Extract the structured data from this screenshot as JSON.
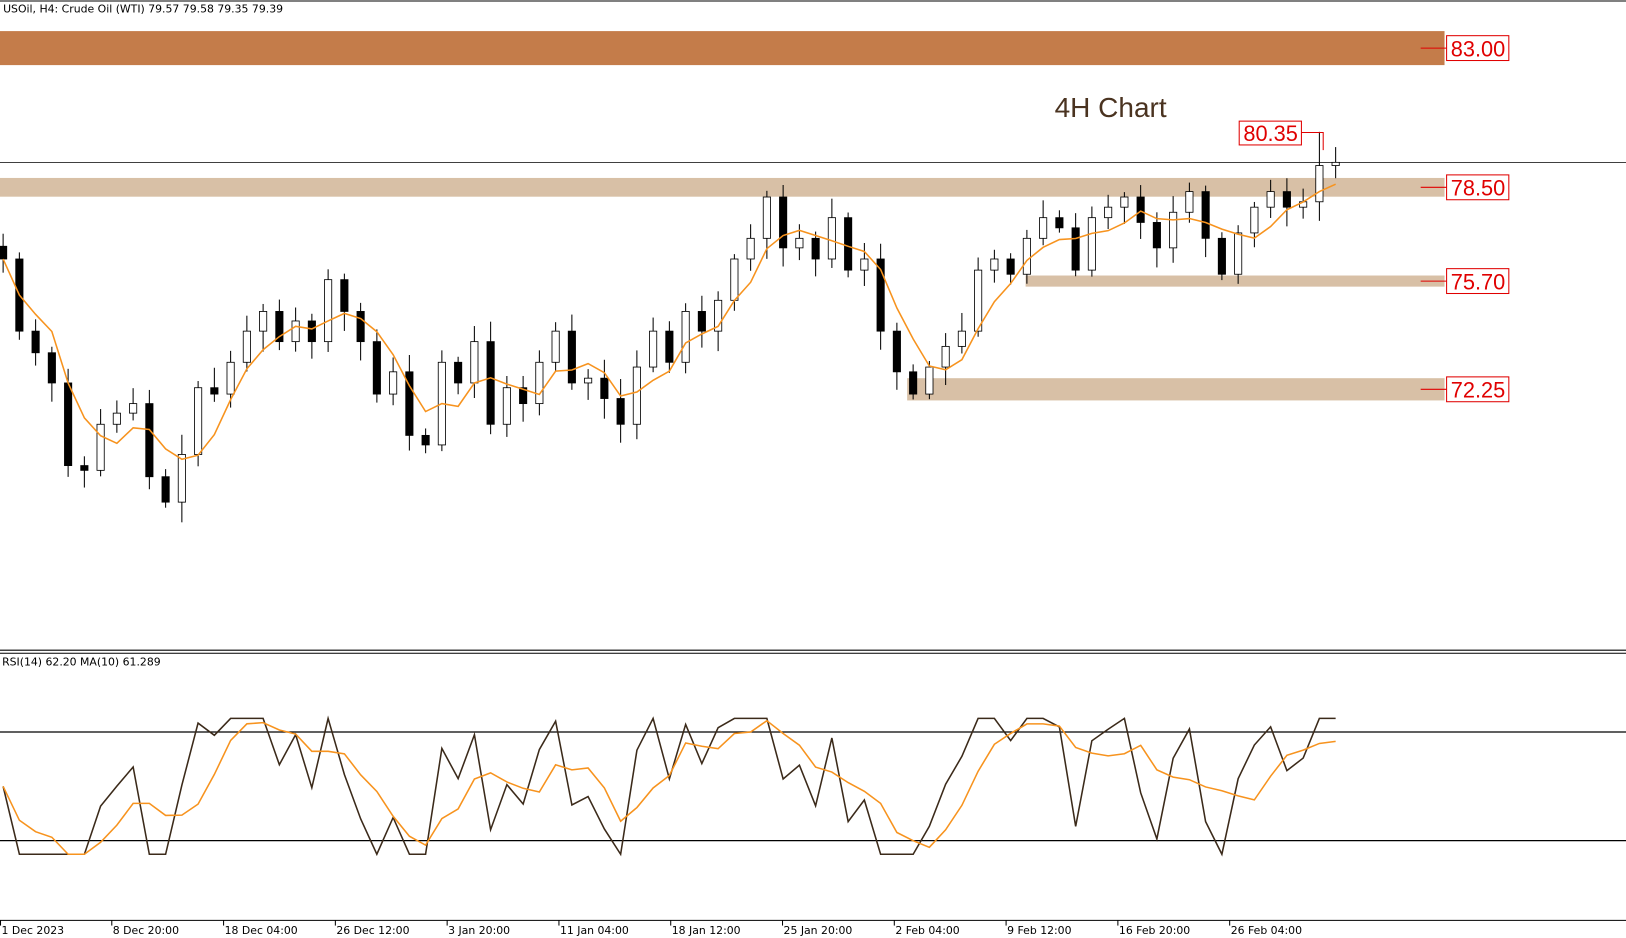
{
  "header": {
    "symbol_line": "USOil, H4:  Crude Oil (WTI)  79.57 79.58 79.35 79.39"
  },
  "chart_data": {
    "type": "candlestick",
    "title": "4H Chart",
    "timeframe": "H4",
    "ylim": [
      66.5,
      84.5
    ],
    "closes": [
      76.35,
      74.08,
      73.4,
      72.45,
      69.85,
      69.7,
      71.15,
      71.5,
      71.8,
      69.5,
      68.7,
      70.2,
      72.3,
      72.1,
      73.1,
      74.08,
      74.7,
      73.75,
      74.4,
      73.75,
      75.7,
      74.7,
      73.75,
      72.1,
      72.8,
      70.8,
      70.5,
      73.1,
      72.45,
      73.75,
      71.15,
      72.3,
      71.8,
      73.1,
      74.08,
      72.45,
      72.6,
      71.96,
      71.15,
      72.95,
      74.08,
      73.1,
      74.7,
      74.08,
      75.05,
      76.35,
      77,
      78.3,
      76.7,
      77,
      76.35,
      77.65,
      76.0,
      76.35,
      74.08,
      72.8,
      72.1,
      72.95,
      73.6,
      74.08,
      76.0,
      76.35,
      75.87,
      77,
      77.65,
      77.33,
      76.0,
      77.65,
      77.98,
      78.3,
      77.5,
      76.7,
      77.82,
      78.47,
      77,
      75.87,
      77.17,
      77.98,
      78.47,
      77.98,
      78.15,
      79.29,
      79.39
    ],
    "moving_average": {
      "color": "#f7931e"
    },
    "zones": [
      {
        "label": "83.00",
        "from": 82.45,
        "to": 83.52,
        "color": "#c47c4a",
        "start_frac": 0
      },
      {
        "label": "78.50",
        "from": 78.31,
        "to": 78.9,
        "color": "#d8c0a6",
        "start_frac": 0
      },
      {
        "label": "75.70",
        "from": 75.48,
        "to": 75.83,
        "color": "#d8c0a6",
        "start_frac": 0.71
      },
      {
        "label": "72.25",
        "from": 71.9,
        "to": 72.6,
        "color": "#d8c0a6",
        "start_frac": 0.628
      }
    ],
    "current_price_line": 79.39,
    "high_annotation": {
      "label": "80.35",
      "value": 80.35
    },
    "rsi": {
      "label": "RSI(14) 62.20 MA(10) 61.289",
      "levels": [
        70,
        30
      ],
      "line_color": "#3b2a1a",
      "ma_color": "#f7931e"
    },
    "x_tick_labels": [
      "1 Dec 2023",
      "8 Dec 20:00",
      "18 Dec 04:00",
      "26 Dec 12:00",
      "3 Jan 20:00",
      "11 Jan 04:00",
      "18 Jan 12:00",
      "25 Jan 20:00",
      "2 Feb 04:00",
      "9 Feb 12:00",
      "16 Feb 20:00",
      "26 Feb 04:00"
    ],
    "level_label_color": "#e00000"
  }
}
